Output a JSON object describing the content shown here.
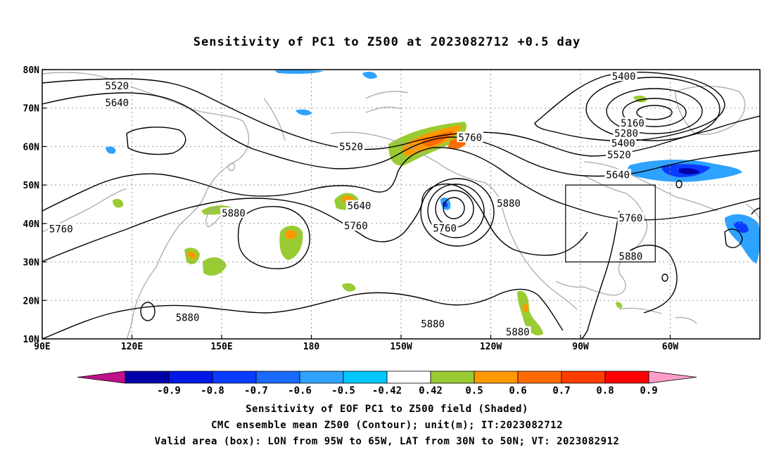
{
  "title": "Sensitivity of PC1 to Z500 at 2023082712 +0.5 day",
  "lat_labels": [
    "80N",
    "70N",
    "60N",
    "50N",
    "40N",
    "30N",
    "20N",
    "10N"
  ],
  "lon_labels": [
    "90E",
    "120E",
    "150E",
    "180",
    "150W",
    "120W",
    "90W",
    "60W"
  ],
  "contour_labels": [
    {
      "text": "5520",
      "lon": 115,
      "lat": 75.8
    },
    {
      "text": "5640",
      "lon": 115,
      "lat": 71.4
    },
    {
      "text": "5760",
      "lon": 96.3,
      "lat": 38.6
    },
    {
      "text": "5880",
      "lon": 154,
      "lat": 42.7
    },
    {
      "text": "5880",
      "lon": 138.6,
      "lat": 15.6
    },
    {
      "text": "5520",
      "lon": 193.3,
      "lat": 60
    },
    {
      "text": "5640",
      "lon": 196,
      "lat": 44.6
    },
    {
      "text": "5760",
      "lon": 194.9,
      "lat": 39.4
    },
    {
      "text": "5760",
      "lon": 233.1,
      "lat": 62.4
    },
    {
      "text": "5760",
      "lon": 224.6,
      "lat": 38.8
    },
    {
      "text": "5880",
      "lon": 246,
      "lat": 45.3
    },
    {
      "text": "5880",
      "lon": 220.6,
      "lat": 13.9
    },
    {
      "text": "5880",
      "lon": 249,
      "lat": 11.8
    },
    {
      "text": "5400",
      "lon": 284.5,
      "lat": 78.3
    },
    {
      "text": "5160",
      "lon": 287.4,
      "lat": 66.1
    },
    {
      "text": "5280",
      "lon": 285.3,
      "lat": 63.5
    },
    {
      "text": "5400",
      "lon": 284.3,
      "lat": 60.9
    },
    {
      "text": "5520",
      "lon": 282.9,
      "lat": 57.9
    },
    {
      "text": "5640",
      "lon": 282.5,
      "lat": 52.7
    },
    {
      "text": "5760",
      "lon": 286.8,
      "lat": 41.4
    },
    {
      "text": "5880",
      "lon": 286.8,
      "lat": 31.5
    }
  ],
  "colorbar": {
    "labels": [
      "-0.9",
      "-0.8",
      "-0.7",
      "-0.6",
      "-0.5",
      "-0.42",
      "0.42",
      "0.5",
      "0.6",
      "0.7",
      "0.8",
      "0.9"
    ],
    "low_tip": "#c0108a",
    "high_tip": "#ff9ec8",
    "colors": [
      "#0000a8",
      "#0018e8",
      "#0a3cff",
      "#1a6aff",
      "#2ea2ff",
      "#00c8ff",
      "#ffffff",
      "#99cc33",
      "#ff9900",
      "#ff6a00",
      "#ff3c00",
      "#ff0000"
    ]
  },
  "valid_area": {
    "lon_min": -95,
    "lon_max": -65,
    "lat_min": 30,
    "lat_max": 50
  },
  "captions": [
    "Sensitivity of EOF PC1 to Z500 field (Shaded)",
    "CMC ensemble mean Z500 (Contour); unit(m); IT:2023082712",
    "Valid area (box): LON from 95W to 65W, LAT from 30N to 50N; VT: 2023082912"
  ],
  "colors": {
    "contour": "#000000",
    "coast": "#aaaaaa",
    "grid": "#999999"
  }
}
